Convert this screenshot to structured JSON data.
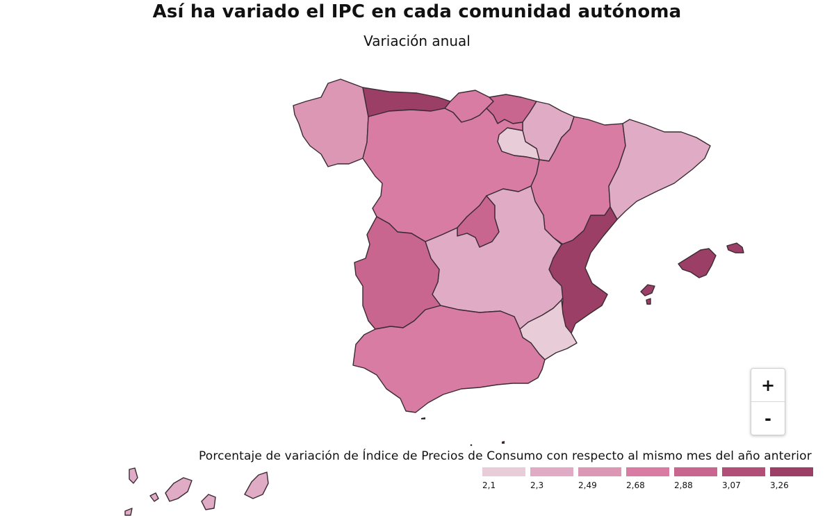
{
  "title": "Así ha variado el IPC en cada comunidad autónoma",
  "subtitle": "Variación anual",
  "legend": {
    "title": "Porcentaje de variación de Índice de Precios de Consumo con respecto al mismo mes del año anterior",
    "items": [
      {
        "label": "2,1",
        "color": "#e8ccd8"
      },
      {
        "label": "2,3",
        "color": "#e0abc4"
      },
      {
        "label": "2,49",
        "color": "#dc97b5"
      },
      {
        "label": "2,68",
        "color": "#d87ca4"
      },
      {
        "label": "2,88",
        "color": "#c9668f"
      },
      {
        "label": "3,07",
        "color": "#b24f78"
      },
      {
        "label": "3,26",
        "color": "#9c3f66"
      }
    ]
  },
  "zoom": {
    "in_label": "+",
    "out_label": "-"
  },
  "regions": [
    {
      "name": "Galicia",
      "color": "#dc97b5"
    },
    {
      "name": "Asturias",
      "color": "#9c3f66"
    },
    {
      "name": "Cantabria",
      "color": "#d87ca4"
    },
    {
      "name": "País Vasco",
      "color": "#c9668f"
    },
    {
      "name": "Navarra",
      "color": "#e0abc4"
    },
    {
      "name": "La Rioja",
      "color": "#e8ccd8"
    },
    {
      "name": "Aragón",
      "color": "#d87ca4"
    },
    {
      "name": "Cataluña",
      "color": "#e0abc4"
    },
    {
      "name": "Castilla y León",
      "color": "#d87ca4"
    },
    {
      "name": "Madrid",
      "color": "#c9668f"
    },
    {
      "name": "Castilla-La Mancha",
      "color": "#e0abc4"
    },
    {
      "name": "Extremadura",
      "color": "#c9668f"
    },
    {
      "name": "Comunidad Valenciana",
      "color": "#9c3f66"
    },
    {
      "name": "Murcia",
      "color": "#e8ccd8"
    },
    {
      "name": "Andalucía",
      "color": "#d87ca4"
    },
    {
      "name": "Baleares",
      "color": "#9c3f66"
    },
    {
      "name": "Canarias",
      "color": "#e0abc4"
    }
  ]
}
